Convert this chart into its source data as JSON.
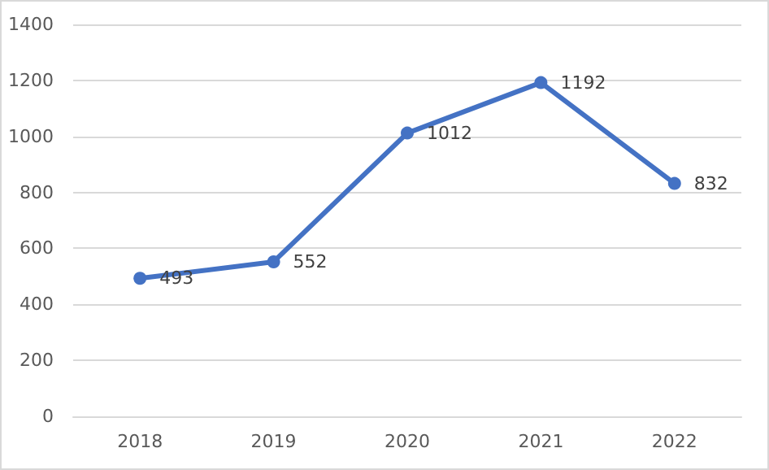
{
  "chart_data": {
    "type": "line",
    "categories": [
      "2018",
      "2019",
      "2020",
      "2021",
      "2022"
    ],
    "series": [
      {
        "color": "#4472c4",
        "values": [
          493,
          552,
          1012,
          1192,
          832
        ]
      }
    ],
    "ylim": [
      0,
      1400
    ],
    "yticks": [
      0,
      200,
      400,
      600,
      800,
      1000,
      1200,
      1400
    ],
    "grid": "y",
    "marker": "circle",
    "line_style": "solid",
    "data_labels": true
  }
}
